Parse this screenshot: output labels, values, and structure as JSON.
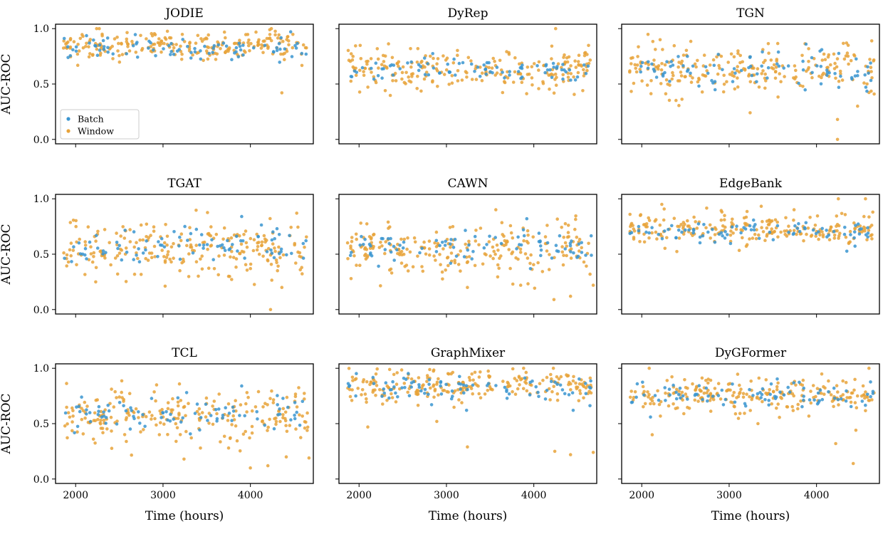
{
  "chart_data": {
    "type": "scatter",
    "figure": "Dynamic link prediction AUC-ROC over time (3x3 grid)",
    "series_names": [
      "Batch",
      "Window"
    ],
    "series_colors": {
      "Batch": "#3a95d0",
      "Window": "#e8a33a"
    },
    "xlabel": "Time (hours)",
    "ylabel": "AUC-ROC",
    "xlim": [
      1770,
      4720
    ],
    "ylim": [
      -0.04,
      1.04
    ],
    "xticks": [
      2000,
      3000,
      4000
    ],
    "yticks": [
      0.0,
      0.5,
      1.0
    ],
    "ytick_labels": [
      "0.0",
      "0.5",
      "1.0"
    ],
    "legend": {
      "location": "lower-left",
      "panel": 0,
      "labels": [
        "Batch",
        "Window"
      ]
    },
    "panels": [
      {
        "title": "JODIE",
        "batch": {
          "center": 0.82,
          "spread": 0.05,
          "outliers": []
        },
        "window": {
          "center": 0.85,
          "spread": 0.06,
          "outliers": [
            [
              4360,
              0.42
            ],
            [
              4240,
              1.0
            ],
            [
              2270,
              1.0
            ]
          ]
        }
      },
      {
        "title": "DyRep",
        "batch": {
          "center": 0.62,
          "spread": 0.04,
          "outliers": []
        },
        "window": {
          "center": 0.64,
          "spread": 0.08,
          "outliers": [
            [
              4250,
              1.0
            ],
            [
              4560,
              0.44
            ],
            [
              2300,
              0.44
            ]
          ]
        }
      },
      {
        "title": "TGN",
        "batch": {
          "center": 0.63,
          "spread": 0.08,
          "outliers": [
            [
              3880,
              0.86
            ],
            [
              3380,
              0.79
            ]
          ]
        },
        "window": {
          "center": 0.63,
          "spread": 0.12,
          "outliers": [
            [
              4240,
              0.0
            ],
            [
              4240,
              0.18
            ],
            [
              3240,
              0.24
            ],
            [
              2210,
              0.9
            ],
            [
              4470,
              0.3
            ],
            [
              4660,
              0.41
            ]
          ]
        }
      },
      {
        "title": "TGAT",
        "batch": {
          "center": 0.58,
          "spread": 0.07,
          "outliers": [
            [
              3900,
              0.84
            ],
            [
              3250,
              0.75
            ]
          ]
        },
        "window": {
          "center": 0.57,
          "spread": 0.12,
          "outliers": [
            [
              4230,
              0.0
            ],
            [
              2230,
              0.25
            ],
            [
              4360,
              0.2
            ],
            [
              4530,
              0.87
            ],
            [
              3750,
              0.3
            ]
          ]
        }
      },
      {
        "title": "CAWN",
        "batch": {
          "center": 0.56,
          "spread": 0.07,
          "outliers": [
            [
              3920,
              0.82
            ]
          ]
        },
        "window": {
          "center": 0.56,
          "spread": 0.13,
          "outliers": [
            [
              4230,
              0.09
            ],
            [
              4420,
              0.12
            ],
            [
              3240,
              0.2
            ],
            [
              4680,
              0.22
            ],
            [
              3760,
              0.23
            ],
            [
              3850,
              0.22
            ]
          ]
        }
      },
      {
        "title": "EdgeBank",
        "batch": {
          "center": 0.69,
          "spread": 0.04,
          "outliers": []
        },
        "window": {
          "center": 0.72,
          "spread": 0.07,
          "outliers": [
            [
              4250,
              1.0
            ],
            [
              4560,
              1.0
            ],
            [
              2230,
              0.95
            ]
          ]
        }
      },
      {
        "title": "TCL",
        "batch": {
          "center": 0.57,
          "spread": 0.07,
          "outliers": [
            [
              3900,
              0.84
            ],
            [
              3270,
              0.78
            ]
          ]
        },
        "window": {
          "center": 0.57,
          "spread": 0.12,
          "outliers": [
            [
              4000,
              0.1
            ],
            [
              4200,
              0.12
            ],
            [
              3240,
              0.18
            ],
            [
              4410,
              0.2
            ],
            [
              4670,
              0.19
            ],
            [
              3750,
              0.28
            ]
          ]
        }
      },
      {
        "title": "GraphMixer",
        "batch": {
          "center": 0.82,
          "spread": 0.05,
          "outliers": [
            [
              3230,
              0.62
            ],
            [
              4450,
              0.62
            ]
          ]
        },
        "window": {
          "center": 0.84,
          "spread": 0.07,
          "outliers": [
            [
              3240,
              0.29
            ],
            [
              4240,
              0.25
            ],
            [
              4420,
              0.22
            ],
            [
              4680,
              0.24
            ],
            [
              2100,
              0.47
            ],
            [
              2890,
              0.52
            ]
          ]
        }
      },
      {
        "title": "DyGFormer",
        "batch": {
          "center": 0.76,
          "spread": 0.05,
          "outliers": [
            [
              4200,
              0.82
            ],
            [
              2100,
              0.56
            ]
          ]
        },
        "window": {
          "center": 0.77,
          "spread": 0.07,
          "outliers": [
            [
              4420,
              0.14
            ],
            [
              4450,
              0.44
            ],
            [
              4600,
              1.0
            ],
            [
              4220,
              0.32
            ],
            [
              2120,
              0.4
            ],
            [
              3330,
              0.5
            ]
          ]
        }
      }
    ]
  }
}
